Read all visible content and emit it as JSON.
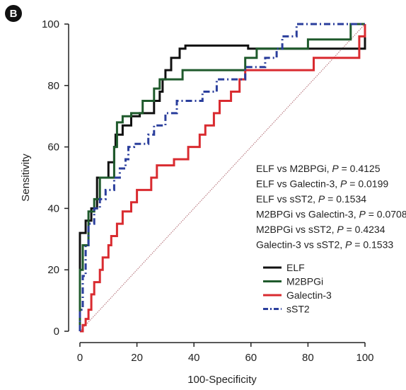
{
  "panel_label": "B",
  "chart_data": {
    "type": "line",
    "xlabel": "100-Specificity",
    "ylabel": "Sensitivity",
    "xlim": [
      0,
      100
    ],
    "ylim": [
      0,
      100
    ],
    "x_ticks": [
      "0",
      "20",
      "40",
      "60",
      "80",
      "100"
    ],
    "y_ticks": [
      "0",
      "20",
      "40",
      "60",
      "80",
      "100"
    ],
    "grid": false,
    "legend_position": "lower-right",
    "reference_line": {
      "x": [
        0,
        100
      ],
      "y": [
        0,
        100
      ],
      "color": "#b5737a",
      "style": "dotted"
    },
    "annotations": [
      {
        "prefix": "ELF vs M2BPGi, ",
        "p": "P",
        "value": " = 0.4125"
      },
      {
        "prefix": "ELF vs Galectin-3, ",
        "p": "P",
        "value": " = 0.0199"
      },
      {
        "prefix": "ELF vs sST2, ",
        "p": "P",
        "value": " = 0.1534"
      },
      {
        "prefix": "M2BPGi vs Galectin-3, ",
        "p": "P",
        "value": " = 0.0708"
      },
      {
        "prefix": "M2BPGi vs sST2, ",
        "p": "P",
        "value": " = 0.4234"
      },
      {
        "prefix": "Galectin-3 vs sST2, ",
        "p": "P",
        "value": " = 0.1533"
      }
    ],
    "series": [
      {
        "name": "ELF",
        "color": "#111111",
        "dash": "",
        "points": [
          [
            0,
            0
          ],
          [
            0,
            32
          ],
          [
            2,
            32
          ],
          [
            2,
            36
          ],
          [
            4,
            36
          ],
          [
            4,
            40
          ],
          [
            6,
            40
          ],
          [
            6,
            50
          ],
          [
            10,
            50
          ],
          [
            10,
            55
          ],
          [
            12,
            55
          ],
          [
            12,
            60
          ],
          [
            12.5,
            60
          ],
          [
            12.5,
            64
          ],
          [
            15,
            64
          ],
          [
            15,
            67
          ],
          [
            18,
            67
          ],
          [
            18,
            70
          ],
          [
            21,
            70
          ],
          [
            21,
            71
          ],
          [
            26,
            71
          ],
          [
            26,
            75
          ],
          [
            28,
            75
          ],
          [
            28,
            78
          ],
          [
            29,
            78
          ],
          [
            29,
            82
          ],
          [
            30,
            82
          ],
          [
            30,
            85
          ],
          [
            32,
            85
          ],
          [
            32,
            89
          ],
          [
            35,
            89
          ],
          [
            35,
            92
          ],
          [
            37,
            92
          ],
          [
            37,
            93
          ],
          [
            59,
            93
          ],
          [
            59,
            92
          ],
          [
            100,
            92
          ],
          [
            100,
            100
          ]
        ]
      },
      {
        "name": "M2BPGi",
        "color": "#1f5a2c",
        "dash": "",
        "points": [
          [
            0,
            0
          ],
          [
            0,
            20
          ],
          [
            1,
            20
          ],
          [
            1,
            28
          ],
          [
            3,
            28
          ],
          [
            3,
            39
          ],
          [
            5,
            39
          ],
          [
            5,
            43
          ],
          [
            7,
            43
          ],
          [
            7,
            50
          ],
          [
            12,
            50
          ],
          [
            12,
            60
          ],
          [
            13,
            60
          ],
          [
            13,
            68
          ],
          [
            15,
            68
          ],
          [
            15,
            70
          ],
          [
            18,
            70
          ],
          [
            18,
            71
          ],
          [
            22,
            71
          ],
          [
            22,
            75
          ],
          [
            26,
            75
          ],
          [
            26,
            79
          ],
          [
            28,
            79
          ],
          [
            28,
            82
          ],
          [
            36,
            82
          ],
          [
            36,
            85
          ],
          [
            58,
            85
          ],
          [
            58,
            89
          ],
          [
            62,
            89
          ],
          [
            62,
            92
          ],
          [
            80,
            92
          ],
          [
            80,
            95
          ],
          [
            95,
            95
          ],
          [
            95,
            100
          ],
          [
            100,
            100
          ]
        ]
      },
      {
        "name": "Galectin-3",
        "color": "#d92b30",
        "dash": "",
        "points": [
          [
            0,
            0
          ],
          [
            1,
            0
          ],
          [
            1,
            2
          ],
          [
            2,
            2
          ],
          [
            2,
            4
          ],
          [
            3,
            4
          ],
          [
            3,
            7
          ],
          [
            4,
            7
          ],
          [
            4,
            12
          ],
          [
            5,
            12
          ],
          [
            5,
            16
          ],
          [
            7,
            16
          ],
          [
            7,
            20
          ],
          [
            8,
            20
          ],
          [
            8,
            24
          ],
          [
            10,
            24
          ],
          [
            10,
            28
          ],
          [
            11,
            28
          ],
          [
            11,
            31
          ],
          [
            13,
            31
          ],
          [
            13,
            35
          ],
          [
            15,
            35
          ],
          [
            15,
            39
          ],
          [
            18,
            39
          ],
          [
            18,
            42
          ],
          [
            20,
            42
          ],
          [
            20,
            46
          ],
          [
            25,
            46
          ],
          [
            25,
            50
          ],
          [
            27,
            50
          ],
          [
            27,
            54
          ],
          [
            33,
            54
          ],
          [
            33,
            56
          ],
          [
            38,
            56
          ],
          [
            38,
            60
          ],
          [
            42,
            60
          ],
          [
            42,
            64
          ],
          [
            44,
            64
          ],
          [
            44,
            67
          ],
          [
            47,
            67
          ],
          [
            47,
            71
          ],
          [
            49,
            71
          ],
          [
            49,
            75
          ],
          [
            53,
            75
          ],
          [
            53,
            78
          ],
          [
            56,
            78
          ],
          [
            56,
            82
          ],
          [
            58,
            82
          ],
          [
            58,
            85
          ],
          [
            82,
            85
          ],
          [
            82,
            89
          ],
          [
            98,
            89
          ],
          [
            98,
            96
          ],
          [
            100,
            96
          ],
          [
            100,
            100
          ]
        ]
      },
      {
        "name": "sST2",
        "color": "#2a3e9c",
        "dash": "9 4 2 4",
        "points": [
          [
            0,
            0
          ],
          [
            0,
            7
          ],
          [
            1,
            7
          ],
          [
            1,
            18
          ],
          [
            2,
            18
          ],
          [
            2,
            28
          ],
          [
            3,
            28
          ],
          [
            3,
            35
          ],
          [
            5,
            35
          ],
          [
            5,
            40
          ],
          [
            7,
            40
          ],
          [
            7,
            43
          ],
          [
            9,
            43
          ],
          [
            9,
            46
          ],
          [
            12,
            46
          ],
          [
            12,
            50
          ],
          [
            14,
            50
          ],
          [
            14,
            53
          ],
          [
            16,
            53
          ],
          [
            16,
            56
          ],
          [
            17,
            56
          ],
          [
            17,
            60
          ],
          [
            19,
            60
          ],
          [
            19,
            61
          ],
          [
            24,
            61
          ],
          [
            24,
            64
          ],
          [
            26,
            64
          ],
          [
            26,
            67
          ],
          [
            30,
            67
          ],
          [
            30,
            71
          ],
          [
            34,
            71
          ],
          [
            34,
            75
          ],
          [
            43,
            75
          ],
          [
            43,
            78
          ],
          [
            48,
            78
          ],
          [
            48,
            82
          ],
          [
            58,
            82
          ],
          [
            58,
            86
          ],
          [
            65,
            86
          ],
          [
            65,
            89
          ],
          [
            69,
            89
          ],
          [
            69,
            92
          ],
          [
            71,
            92
          ],
          [
            71,
            96
          ],
          [
            76,
            96
          ],
          [
            76,
            100
          ],
          [
            100,
            100
          ]
        ]
      }
    ]
  }
}
